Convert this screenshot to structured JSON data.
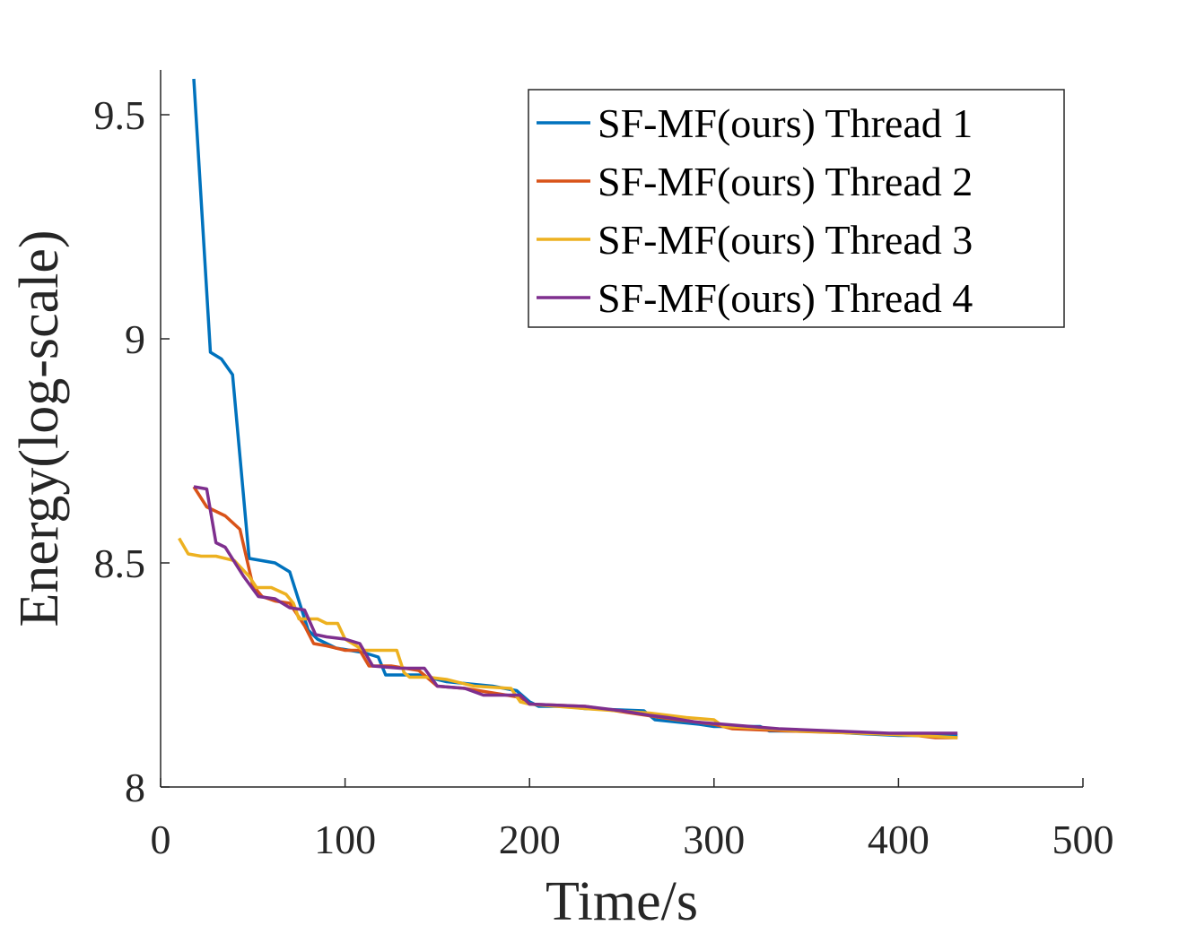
{
  "chart_data": {
    "type": "line",
    "title": "",
    "xlabel": "Time/s",
    "ylabel": "Energy(log-scale)",
    "xlim": [
      0,
      500
    ],
    "ylim": [
      8,
      9.6
    ],
    "xticks": [
      0,
      100,
      200,
      300,
      400,
      500
    ],
    "xtick_labels": [
      "0",
      "100",
      "200",
      "300",
      "400",
      "500"
    ],
    "yticks": [
      8,
      8.5,
      9,
      9.5
    ],
    "ytick_labels": [
      "8",
      "8.5",
      "9",
      "9.5"
    ],
    "grid": false,
    "legend_position": "top-right",
    "series": [
      {
        "name": "SF-MF(ours) Thread 1",
        "color": "#0072BD",
        "points": [
          [
            18,
            9.58
          ],
          [
            27,
            8.97
          ],
          [
            33,
            8.955
          ],
          [
            39,
            8.92
          ],
          [
            48,
            8.51
          ],
          [
            62,
            8.5
          ],
          [
            70,
            8.48
          ],
          [
            80,
            8.35
          ],
          [
            85,
            8.33
          ],
          [
            95,
            8.31
          ],
          [
            110,
            8.3
          ],
          [
            118,
            8.29
          ],
          [
            122,
            8.25
          ],
          [
            140,
            8.25
          ],
          [
            155,
            8.235
          ],
          [
            180,
            8.225
          ],
          [
            193,
            8.215
          ],
          [
            200,
            8.19
          ],
          [
            205,
            8.18
          ],
          [
            220,
            8.18
          ],
          [
            230,
            8.175
          ],
          [
            262,
            8.17
          ],
          [
            268,
            8.15
          ],
          [
            292,
            8.14
          ],
          [
            300,
            8.135
          ],
          [
            325,
            8.135
          ],
          [
            330,
            8.125
          ],
          [
            360,
            8.125
          ],
          [
            375,
            8.12
          ],
          [
            400,
            8.115
          ],
          [
            432,
            8.115
          ]
        ]
      },
      {
        "name": "SF-MF(ours) Thread 2",
        "color": "#D95319",
        "points": [
          [
            18,
            8.67
          ],
          [
            25,
            8.625
          ],
          [
            35,
            8.605
          ],
          [
            43,
            8.575
          ],
          [
            50,
            8.45
          ],
          [
            55,
            8.425
          ],
          [
            62,
            8.415
          ],
          [
            70,
            8.41
          ],
          [
            78,
            8.36
          ],
          [
            83,
            8.32
          ],
          [
            90,
            8.315
          ],
          [
            100,
            8.305
          ],
          [
            108,
            8.305
          ],
          [
            113,
            8.27
          ],
          [
            125,
            8.27
          ],
          [
            140,
            8.26
          ],
          [
            150,
            8.225
          ],
          [
            165,
            8.22
          ],
          [
            180,
            8.21
          ],
          [
            195,
            8.2
          ],
          [
            200,
            8.185
          ],
          [
            230,
            8.18
          ],
          [
            255,
            8.165
          ],
          [
            280,
            8.15
          ],
          [
            300,
            8.14
          ],
          [
            310,
            8.13
          ],
          [
            340,
            8.125
          ],
          [
            380,
            8.12
          ],
          [
            410,
            8.115
          ],
          [
            420,
            8.11
          ],
          [
            432,
            8.11
          ]
        ]
      },
      {
        "name": "SF-MF(ours) Thread 3",
        "color": "#EDB120",
        "points": [
          [
            10,
            8.555
          ],
          [
            15,
            8.52
          ],
          [
            22,
            8.515
          ],
          [
            30,
            8.515
          ],
          [
            40,
            8.505
          ],
          [
            48,
            8.47
          ],
          [
            52,
            8.445
          ],
          [
            60,
            8.445
          ],
          [
            68,
            8.43
          ],
          [
            72,
            8.41
          ],
          [
            75,
            8.375
          ],
          [
            85,
            8.375
          ],
          [
            90,
            8.365
          ],
          [
            96,
            8.365
          ],
          [
            100,
            8.33
          ],
          [
            110,
            8.305
          ],
          [
            128,
            8.305
          ],
          [
            132,
            8.255
          ],
          [
            135,
            8.245
          ],
          [
            145,
            8.245
          ],
          [
            155,
            8.24
          ],
          [
            170,
            8.225
          ],
          [
            190,
            8.22
          ],
          [
            195,
            8.19
          ],
          [
            200,
            8.185
          ],
          [
            230,
            8.175
          ],
          [
            265,
            8.165
          ],
          [
            285,
            8.155
          ],
          [
            300,
            8.15
          ],
          [
            305,
            8.135
          ],
          [
            330,
            8.13
          ],
          [
            345,
            8.125
          ],
          [
            380,
            8.12
          ],
          [
            410,
            8.115
          ],
          [
            432,
            8.11
          ]
        ]
      },
      {
        "name": "SF-MF(ours) Thread 4",
        "color": "#7E2F8E",
        "points": [
          [
            18,
            8.67
          ],
          [
            25,
            8.665
          ],
          [
            30,
            8.545
          ],
          [
            35,
            8.535
          ],
          [
            45,
            8.47
          ],
          [
            53,
            8.425
          ],
          [
            62,
            8.42
          ],
          [
            70,
            8.4
          ],
          [
            78,
            8.395
          ],
          [
            84,
            8.34
          ],
          [
            90,
            8.335
          ],
          [
            100,
            8.33
          ],
          [
            108,
            8.32
          ],
          [
            115,
            8.27
          ],
          [
            130,
            8.265
          ],
          [
            143,
            8.265
          ],
          [
            150,
            8.225
          ],
          [
            165,
            8.22
          ],
          [
            175,
            8.205
          ],
          [
            195,
            8.205
          ],
          [
            200,
            8.185
          ],
          [
            230,
            8.18
          ],
          [
            250,
            8.17
          ],
          [
            265,
            8.16
          ],
          [
            275,
            8.155
          ],
          [
            290,
            8.145
          ],
          [
            305,
            8.14
          ],
          [
            335,
            8.13
          ],
          [
            365,
            8.125
          ],
          [
            395,
            8.12
          ],
          [
            432,
            8.12
          ]
        ]
      }
    ]
  }
}
